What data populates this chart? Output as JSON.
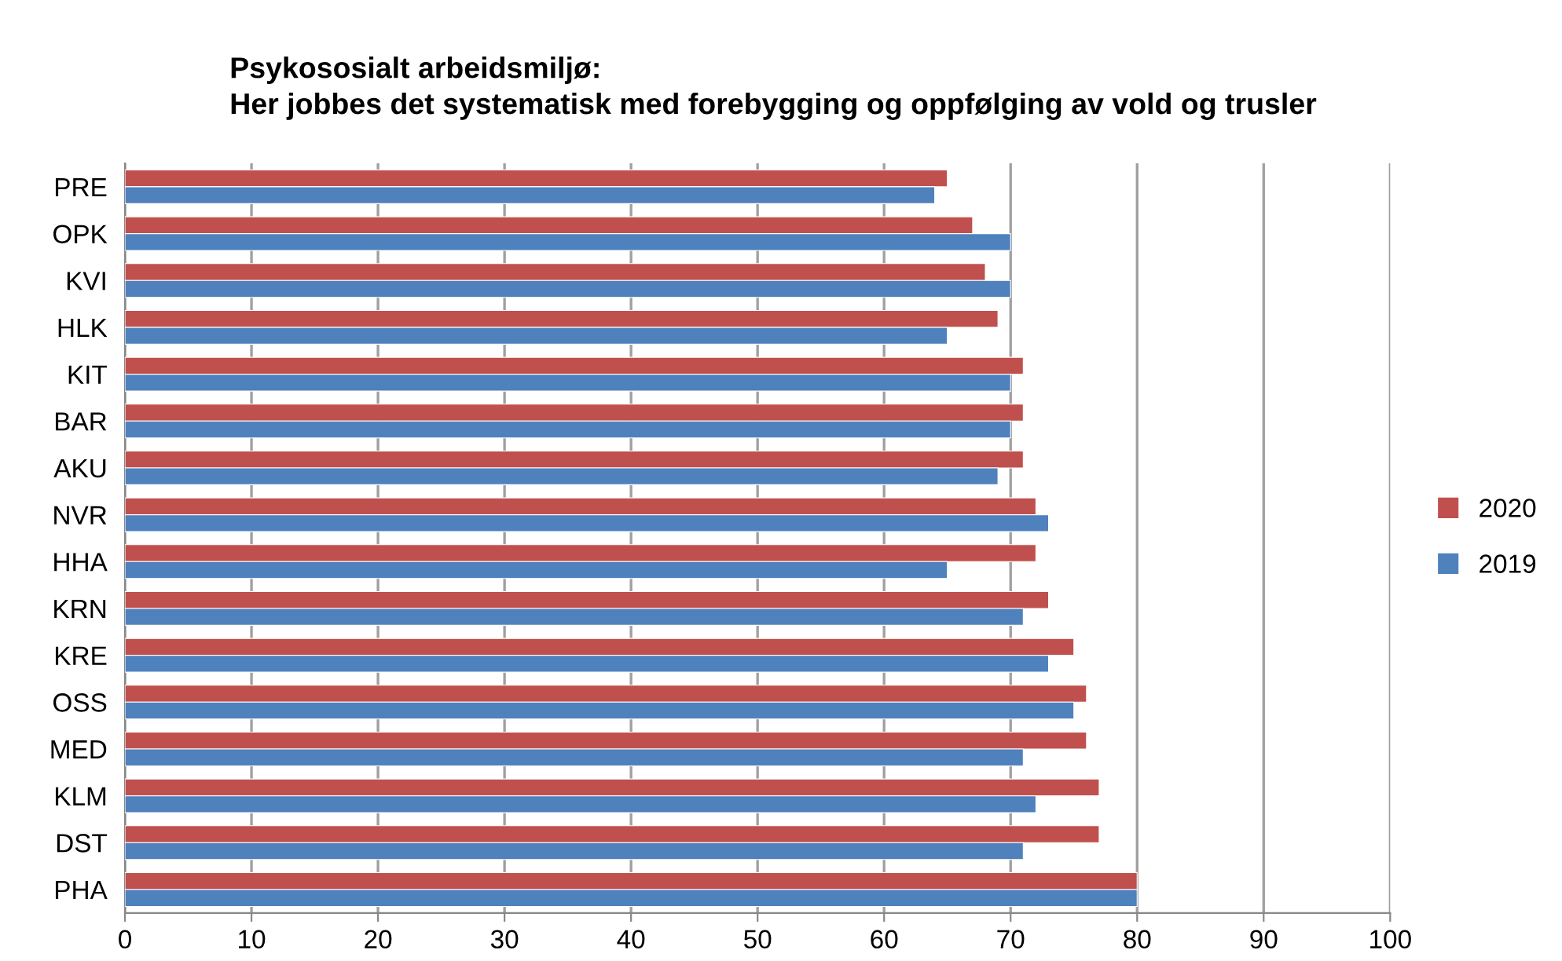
{
  "chart_data": {
    "type": "bar",
    "orientation": "horizontal",
    "title": "Psykososialt arbeidsmiljø:\nHer jobbes det systematisk med forebygging og oppfølging av vold og trusler",
    "categories": [
      "PRE",
      "OPK",
      "KVI",
      "HLK",
      "KIT",
      "BAR",
      "AKU",
      "NVR",
      "HHA",
      "KRN",
      "KRE",
      "OSS",
      "MED",
      "KLM",
      "DST",
      "PHA"
    ],
    "series": [
      {
        "name": "2020",
        "color": "#c0504d",
        "values": [
          65,
          67,
          68,
          69,
          71,
          71,
          71,
          72,
          72,
          73,
          75,
          76,
          76,
          77,
          77,
          80
        ]
      },
      {
        "name": "2019",
        "color": "#4f81bd",
        "values": [
          64,
          70,
          70,
          65,
          70,
          70,
          69,
          73,
          65,
          71,
          73,
          75,
          71,
          72,
          71,
          80
        ]
      }
    ],
    "xlim": [
      0,
      100
    ],
    "xticks": [
      0,
      10,
      20,
      30,
      40,
      50,
      60,
      70,
      80,
      90,
      100
    ],
    "grid": "x",
    "legend": "right"
  }
}
